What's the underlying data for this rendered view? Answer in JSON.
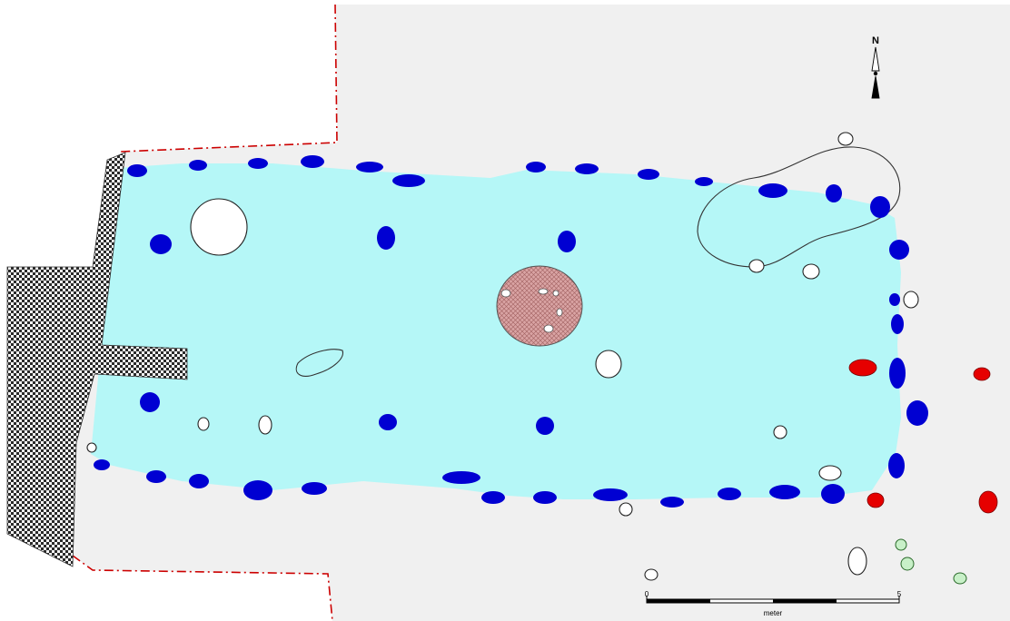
{
  "north_arrow": {
    "label": "N"
  },
  "scale_bar": {
    "start_label": "0",
    "end_label": "5",
    "unit_label": "meter"
  },
  "colors": {
    "excavation_area": "#f0f0f0",
    "house_floor": "#b5f7f7",
    "post_hole": "#0000d2",
    "red_pit": "#e60000",
    "green_pit": "#c8f0c8",
    "hearth": "#d9a3a3",
    "wall": "#3a3a3a",
    "boundary": "#cc0000"
  }
}
